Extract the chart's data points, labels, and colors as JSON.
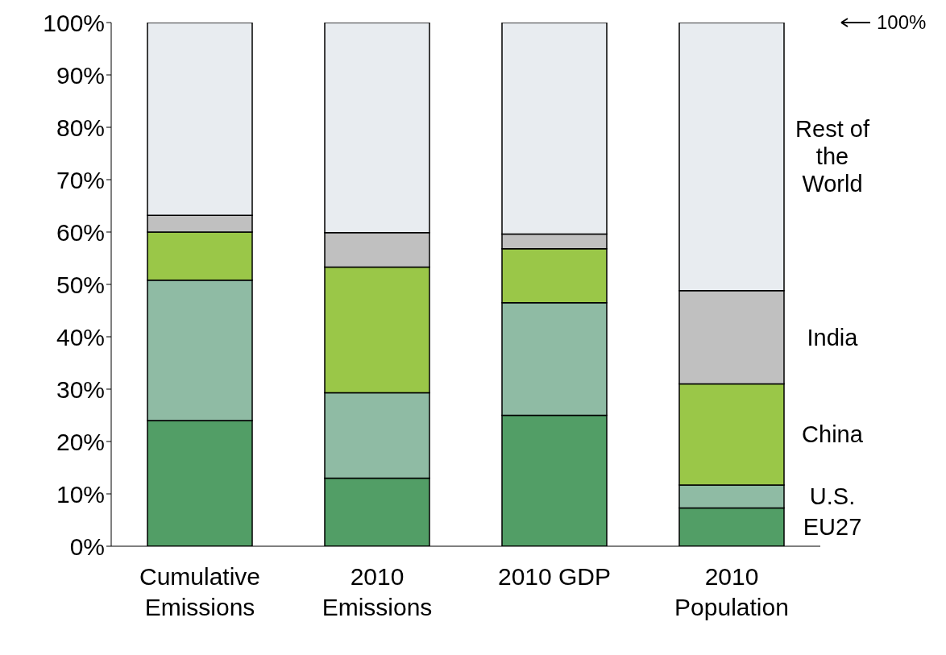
{
  "chart_data": {
    "type": "bar",
    "stacked": true,
    "categories": [
      "Cumulative Emissions",
      "2010 Emissions",
      "2010 GDP",
      "2010 Population"
    ],
    "series": [
      {
        "name": "EU27",
        "color": "#529e66",
        "values": [
          24,
          13,
          25,
          7.3
        ]
      },
      {
        "name": "U.S.",
        "color": "#8fbba4",
        "values": [
          26.8,
          16.3,
          21.5,
          4.4
        ]
      },
      {
        "name": "China",
        "color": "#9ac748",
        "values": [
          9.2,
          24,
          10.3,
          19.3
        ]
      },
      {
        "name": "India",
        "color": "#c0c0c0",
        "values": [
          3.2,
          6.6,
          2.8,
          17.8
        ]
      },
      {
        "name": "Rest of the World",
        "color": "#e8ecf0",
        "values": [
          36.8,
          40.1,
          40.4,
          51.2
        ]
      }
    ],
    "ylim": [
      0,
      100
    ],
    "yticks": [
      {
        "value": 0,
        "label": "0%"
      },
      {
        "value": 10,
        "label": "10%"
      },
      {
        "value": 20,
        "label": "20%"
      },
      {
        "value": 30,
        "label": "30%"
      },
      {
        "value": 40,
        "label": "40%"
      },
      {
        "value": 50,
        "label": "50%"
      },
      {
        "value": 60,
        "label": "60%"
      },
      {
        "value": 70,
        "label": "70%"
      },
      {
        "value": 80,
        "label": "80%"
      },
      {
        "value": 90,
        "label": "90%"
      },
      {
        "value": 100,
        "label": "100%"
      }
    ],
    "annotations": [
      "100%"
    ]
  }
}
